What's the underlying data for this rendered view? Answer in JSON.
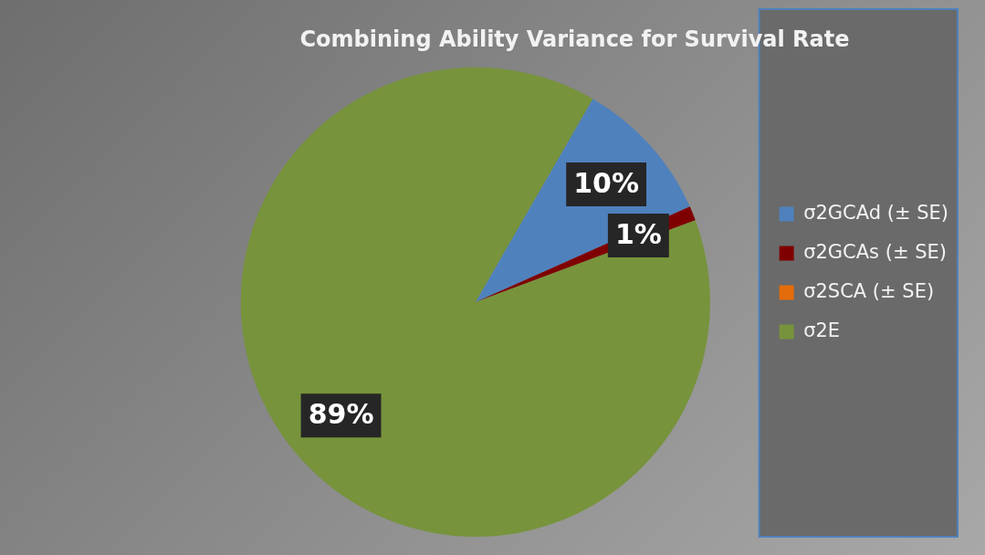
{
  "chart_data": {
    "type": "pie",
    "title": "Combining Ability Variance for Survival Rate",
    "categories": [
      "σ2GCAd (± SE)",
      "σ2GCAs (± SE)",
      "σ2SCA (± SE)",
      "σ2E"
    ],
    "values": [
      10,
      1,
      0,
      89
    ],
    "colors": [
      "#4f81bd",
      "#7f0000",
      "#e46c0a",
      "#77933c"
    ],
    "value_labels": [
      "10%",
      "1%",
      null,
      "89%"
    ],
    "legend": "right"
  }
}
